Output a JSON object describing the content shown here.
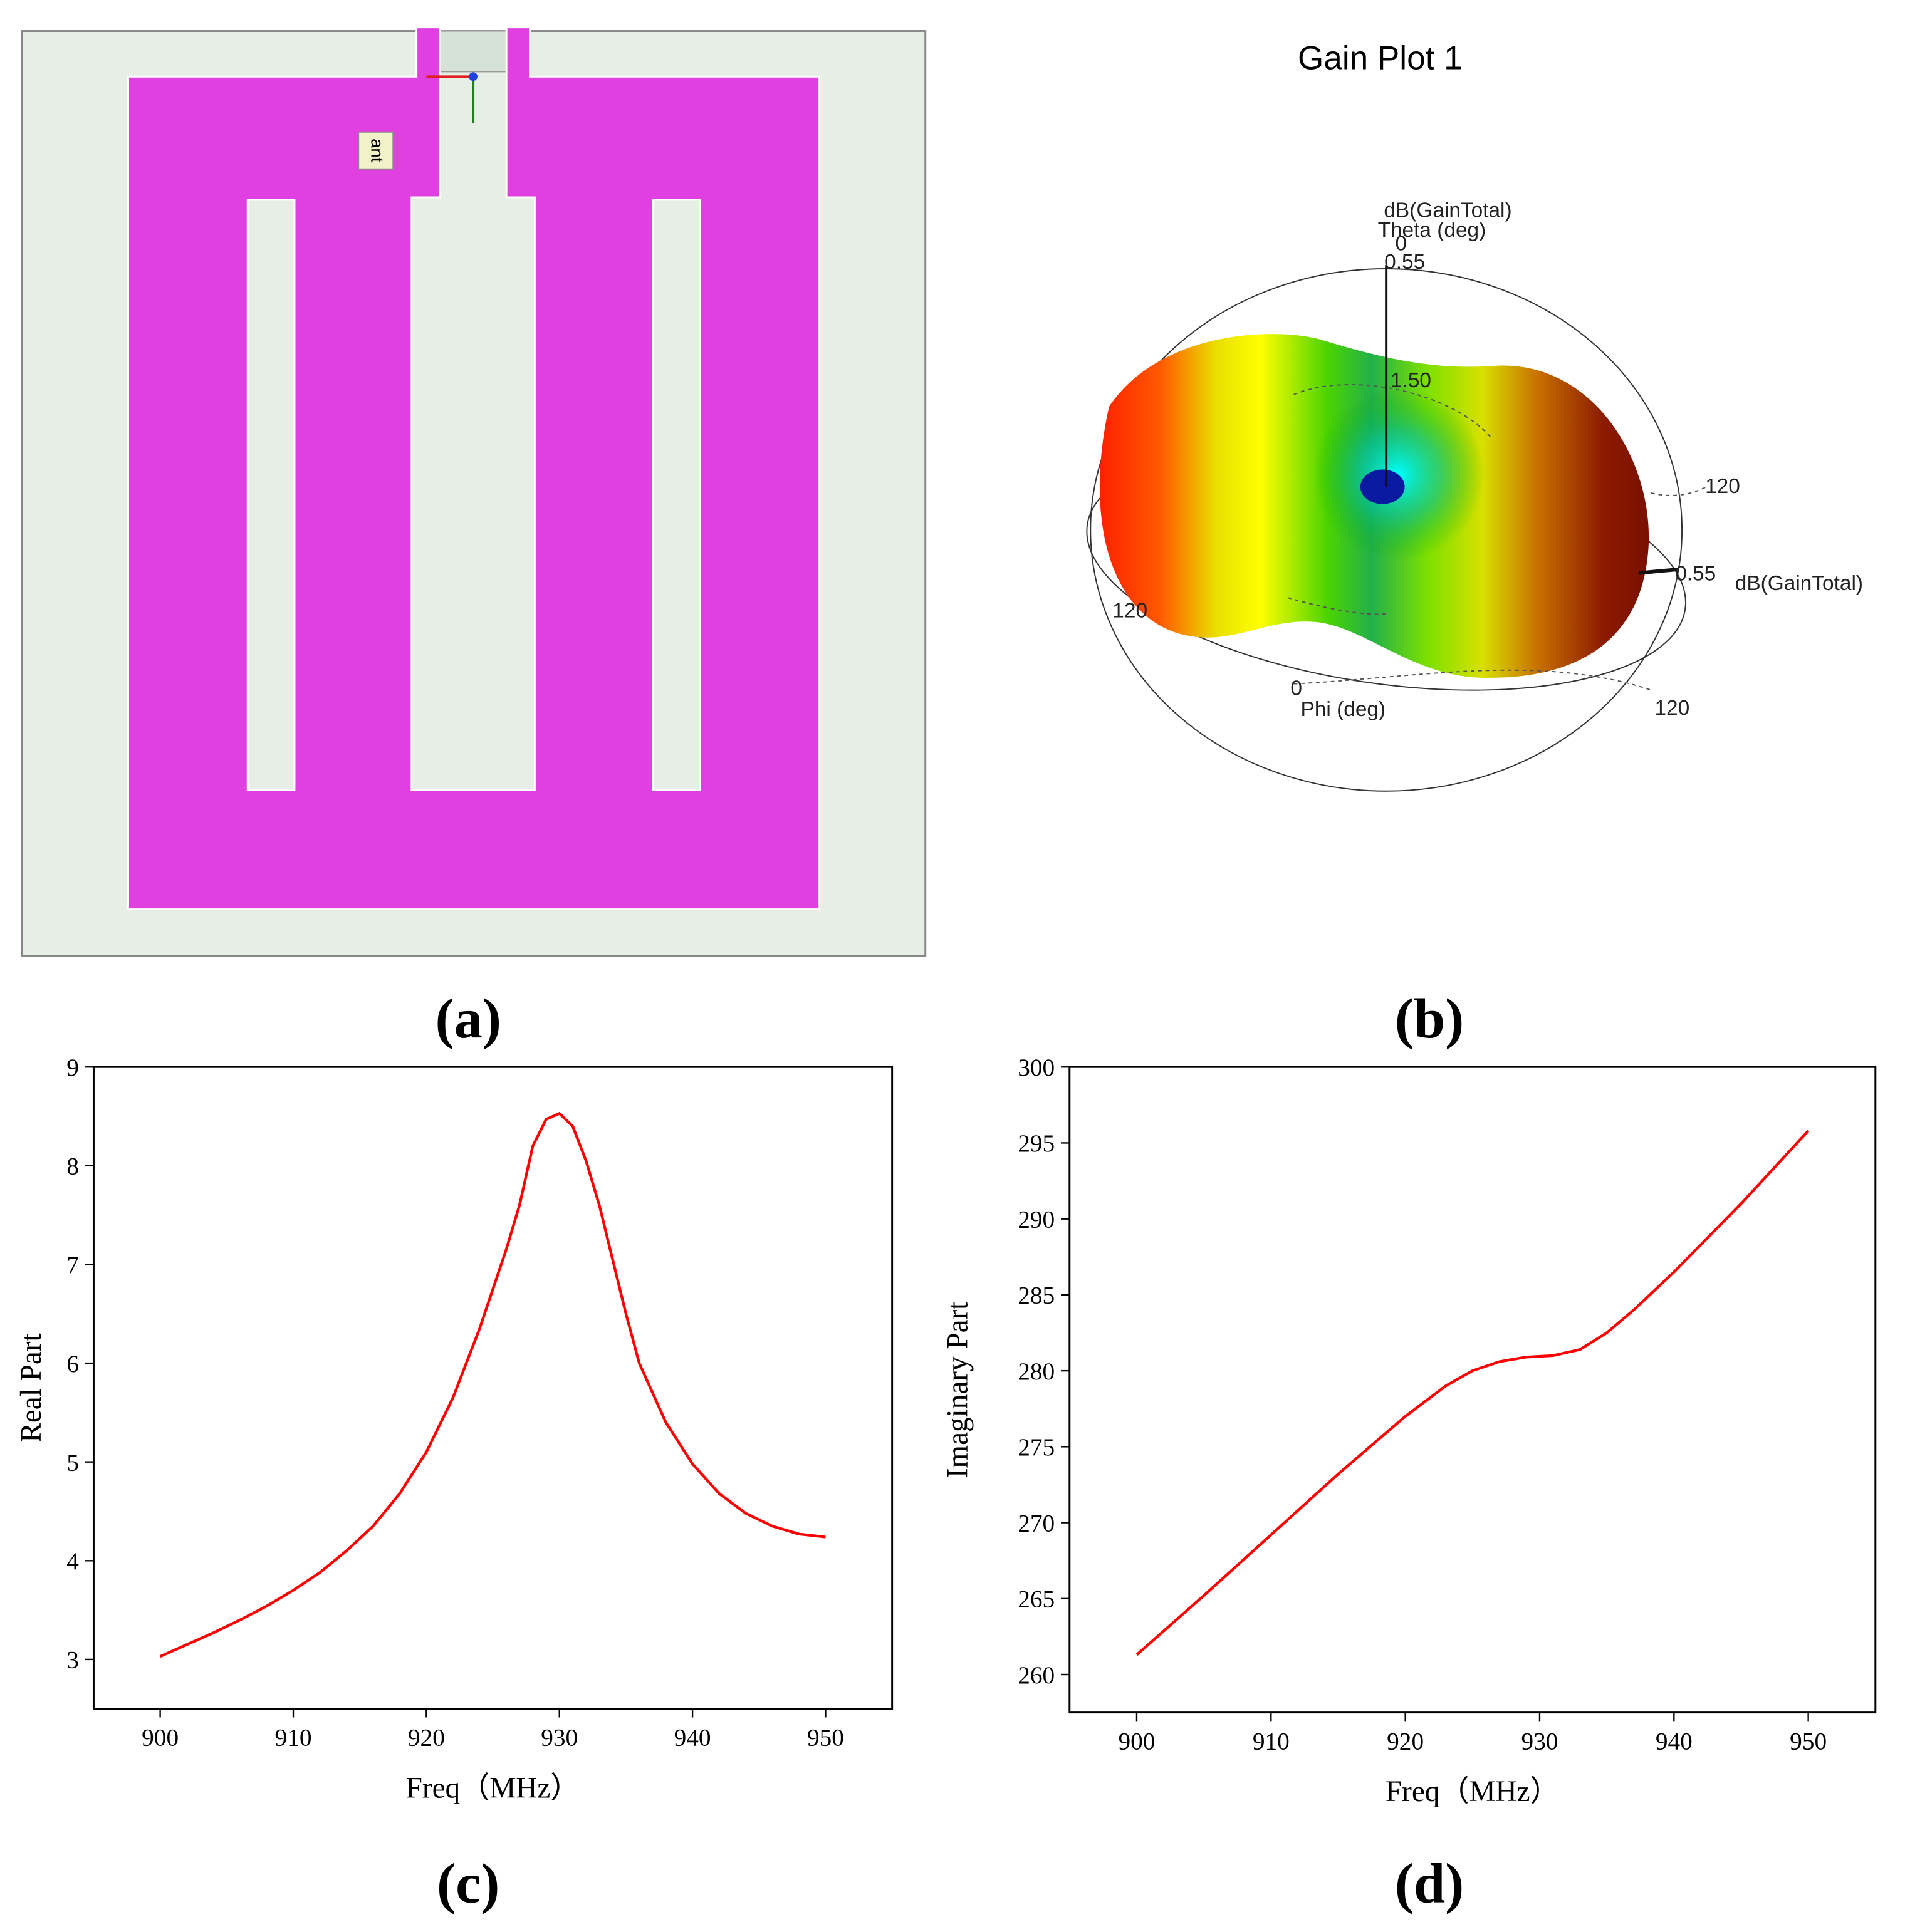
{
  "panels": {
    "a": {
      "label": "(a)",
      "tag": "ant"
    },
    "b": {
      "label": "(b)",
      "title": "Gain Plot 1",
      "texts": [
        "dB(GainTotal)",
        "Theta (deg)",
        "0",
        "0.55",
        "1.50",
        "120",
        "0.55",
        "dB(GainTotal)",
        "120",
        "0",
        "Phi (deg)",
        "120"
      ]
    },
    "c": {
      "label": "(c)"
    },
    "d": {
      "label": "(d)"
    }
  },
  "chart_data": [
    {
      "type": "line",
      "xlabel": "Freq（MHz）",
      "ylabel": "Real Part",
      "color": "#ff0000",
      "x": [
        900,
        902,
        904,
        906,
        908,
        910,
        912,
        914,
        916,
        918,
        920,
        922,
        924,
        926,
        927,
        928,
        929,
        930,
        931,
        932,
        933,
        934,
        935,
        936,
        938,
        940,
        942,
        944,
        946,
        948,
        950
      ],
      "values": [
        3.03,
        3.15,
        3.27,
        3.4,
        3.54,
        3.7,
        3.88,
        4.1,
        4.35,
        4.68,
        5.1,
        5.65,
        6.35,
        7.15,
        7.6,
        8.2,
        8.47,
        8.53,
        8.4,
        8.05,
        7.6,
        7.05,
        6.5,
        6.0,
        5.4,
        4.98,
        4.68,
        4.48,
        4.35,
        4.27,
        4.24
      ],
      "xlim": [
        895,
        955
      ],
      "ylim": [
        2.5,
        9
      ],
      "xticks": [
        900,
        910,
        920,
        930,
        940,
        950
      ],
      "yticks": [
        3,
        4,
        5,
        6,
        7,
        8,
        9
      ]
    },
    {
      "type": "line",
      "xlabel": "Freq（MHz）",
      "ylabel": "Imaginary Part",
      "color": "#ff0000",
      "x": [
        900,
        905,
        910,
        915,
        920,
        923,
        925,
        927,
        929,
        931,
        933,
        935,
        937,
        940,
        945,
        950
      ],
      "values": [
        261.3,
        265.2,
        269.2,
        273.2,
        277.0,
        279.0,
        280.0,
        280.6,
        280.9,
        281.0,
        281.4,
        282.5,
        284.0,
        286.5,
        291.0,
        295.8
      ],
      "xlim": [
        895,
        955
      ],
      "ylim": [
        257.5,
        300
      ],
      "xticks": [
        900,
        910,
        920,
        930,
        940,
        950
      ],
      "yticks": [
        260,
        265,
        270,
        275,
        280,
        285,
        290,
        295,
        300
      ]
    }
  ]
}
